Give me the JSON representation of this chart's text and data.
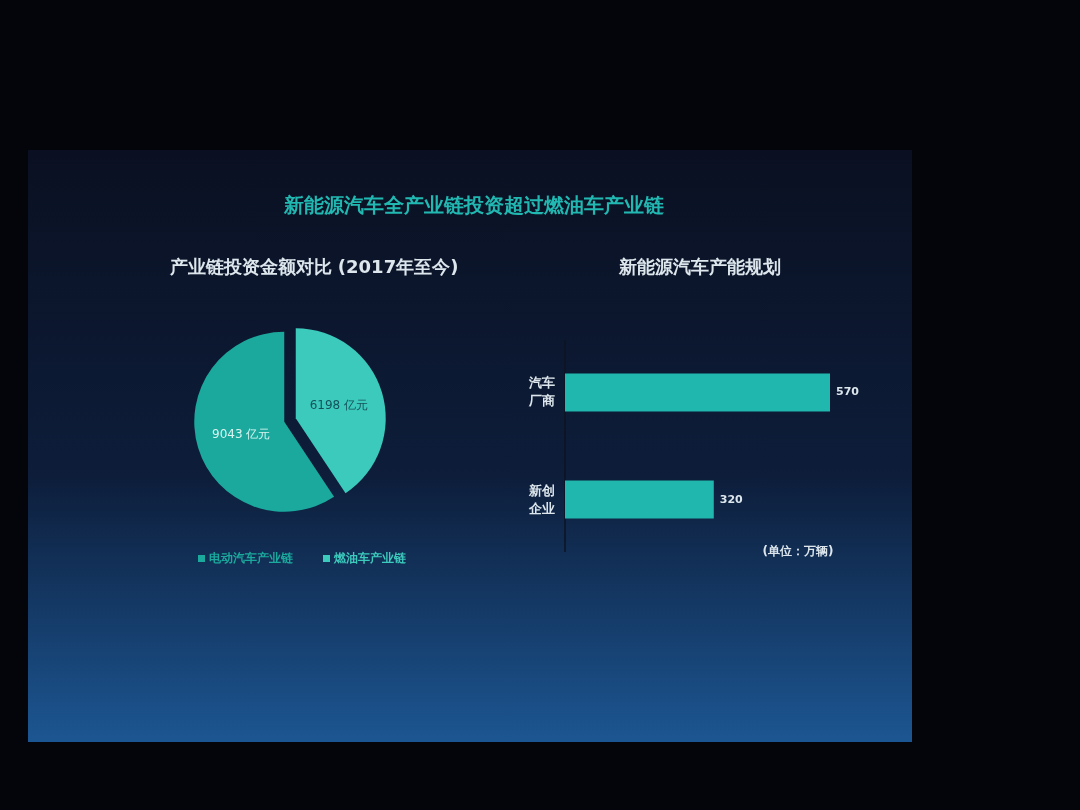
{
  "chart_data": [
    {
      "type": "pie",
      "title": "产业链投资金额对比 (2017年至今)",
      "annotations": [
        "新能源汽车全产业链投资超过燃油车产业链"
      ],
      "categories": [
        "电动汽车产业链",
        "燃油车产业链"
      ],
      "values": [
        9043,
        6198
      ],
      "colors": [
        "#1ba99d",
        "#3ccabd"
      ],
      "value_labels": [
        "9043 亿元",
        "6198 亿元"
      ],
      "legend": "bottom"
    },
    {
      "type": "bar",
      "orientation": "horizontal",
      "title": "新能源汽车产能规划",
      "categories": [
        "汽车厂商",
        "新创企业"
      ],
      "values": [
        570,
        320
      ],
      "color": "#20b8ae",
      "data_labels": true,
      "annotations": [
        "(单位：万辆)"
      ]
    }
  ]
}
